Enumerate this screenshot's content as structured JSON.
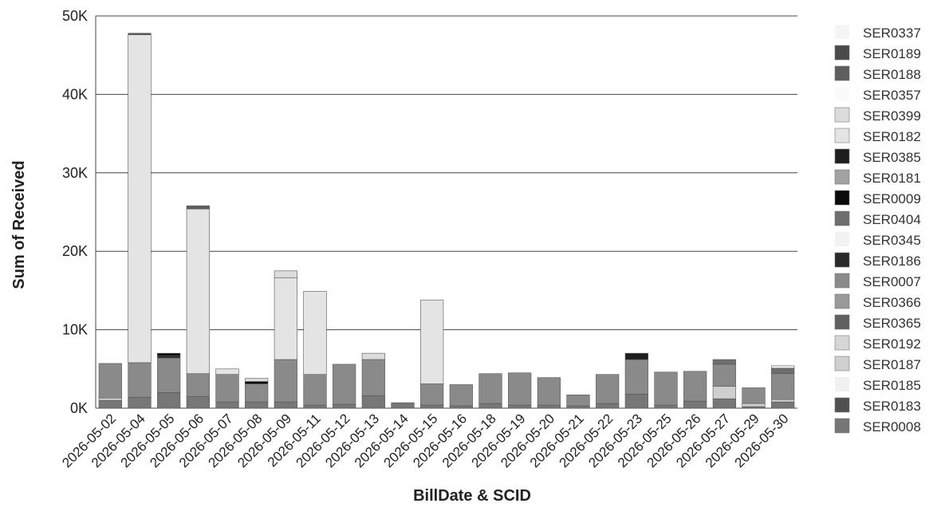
{
  "chart_data": {
    "type": "bar",
    "stacked": true,
    "xlabel": "BillDate & SCID",
    "ylabel": "Sum of Received",
    "ylim": [
      0,
      50000
    ],
    "yticks": [
      {
        "value": 0,
        "label": "0K"
      },
      {
        "value": 10000,
        "label": "10K"
      },
      {
        "value": 20000,
        "label": "20K"
      },
      {
        "value": 30000,
        "label": "30K"
      },
      {
        "value": 40000,
        "label": "40K"
      },
      {
        "value": 50000,
        "label": "50K"
      }
    ],
    "grid": true,
    "legend_position": "right",
    "categories": [
      "2026-05-02",
      "2026-05-04",
      "2026-05-05",
      "2026-05-06",
      "2026-05-07",
      "2026-05-08",
      "2026-05-09",
      "2026-05-11",
      "2026-05-12",
      "2026-05-13",
      "2026-05-14",
      "2026-05-15",
      "2026-05-16",
      "2026-05-18",
      "2026-05-19",
      "2026-05-20",
      "2026-05-21",
      "2026-05-22",
      "2026-05-23",
      "2026-05-25",
      "2026-05-26",
      "2026-05-27",
      "2026-05-29",
      "2026-05-30"
    ],
    "series": [
      {
        "name": "SER0337",
        "color": "#f5f5f5",
        "values": [
          0,
          0,
          0,
          0,
          0,
          0,
          0,
          0,
          0,
          0,
          0,
          0,
          0,
          0,
          0,
          0,
          0,
          0,
          0,
          0,
          0,
          0,
          0,
          300
        ]
      },
      {
        "name": "SER0189",
        "color": "#4a4a4a",
        "values": [
          0,
          0,
          0,
          0,
          0,
          0,
          0,
          0,
          0,
          0,
          0,
          0,
          0,
          0,
          0,
          0,
          0,
          0,
          0,
          0,
          0,
          0,
          0,
          0
        ]
      },
      {
        "name": "SER0188",
        "color": "#5e5e5e",
        "values": [
          0,
          200,
          0,
          400,
          0,
          0,
          0,
          0,
          0,
          0,
          0,
          0,
          0,
          0,
          0,
          0,
          0,
          0,
          0,
          0,
          0,
          0,
          0,
          0
        ]
      },
      {
        "name": "SER0357",
        "color": "#fafafa",
        "values": [
          0,
          0,
          0,
          0,
          0,
          0,
          0,
          0,
          0,
          0,
          0,
          0,
          0,
          0,
          0,
          0,
          0,
          0,
          0,
          0,
          0,
          0,
          0,
          0
        ]
      },
      {
        "name": "SER0399",
        "color": "#dcdcdc",
        "values": [
          0,
          0,
          0,
          0,
          0,
          400,
          900,
          0,
          0,
          800,
          0,
          0,
          0,
          0,
          0,
          0,
          0,
          0,
          0,
          0,
          0,
          0,
          0,
          0
        ]
      },
      {
        "name": "SER0182",
        "color": "#e4e4e4",
        "values": [
          0,
          41800,
          0,
          21000,
          700,
          0,
          10400,
          10600,
          0,
          0,
          0,
          10700,
          0,
          0,
          0,
          0,
          0,
          0,
          0,
          0,
          0,
          0,
          0,
          0
        ]
      },
      {
        "name": "SER0385",
        "color": "#1e1e1e",
        "values": [
          0,
          0,
          0,
          0,
          0,
          0,
          0,
          0,
          0,
          0,
          0,
          0,
          0,
          0,
          0,
          0,
          0,
          0,
          800,
          0,
          0,
          0,
          0,
          0
        ]
      },
      {
        "name": "SER0181",
        "color": "#a2a2a2",
        "values": [
          0,
          0,
          0,
          0,
          0,
          0,
          0,
          0,
          0,
          0,
          0,
          0,
          0,
          0,
          0,
          0,
          0,
          0,
          0,
          0,
          0,
          0,
          0,
          0
        ]
      },
      {
        "name": "SER0009",
        "color": "#0a0a0a",
        "values": [
          0,
          0,
          300,
          0,
          0,
          300,
          0,
          0,
          0,
          0,
          0,
          0,
          0,
          0,
          0,
          0,
          0,
          0,
          0,
          0,
          0,
          0,
          0,
          0
        ]
      },
      {
        "name": "SER0404",
        "color": "#6e6e6e",
        "values": [
          0,
          0,
          0,
          0,
          0,
          0,
          0,
          0,
          0,
          0,
          0,
          0,
          0,
          0,
          0,
          0,
          0,
          0,
          0,
          0,
          0,
          600,
          0,
          700
        ]
      },
      {
        "name": "SER0345",
        "color": "#f2f2f2",
        "values": [
          0,
          0,
          0,
          0,
          0,
          0,
          0,
          0,
          0,
          0,
          0,
          0,
          0,
          0,
          0,
          0,
          0,
          0,
          0,
          0,
          0,
          0,
          0,
          0
        ]
      },
      {
        "name": "SER0186",
        "color": "#2a2a2a",
        "values": [
          0,
          0,
          300,
          0,
          0,
          0,
          0,
          0,
          0,
          0,
          0,
          0,
          0,
          0,
          0,
          0,
          0,
          0,
          0,
          0,
          0,
          0,
          0,
          0
        ]
      },
      {
        "name": "SER0007",
        "color": "#8a8a8a",
        "values": [
          4400,
          4400,
          4400,
          2900,
          3500,
          2300,
          5400,
          3900,
          5100,
          4600,
          0,
          2700,
          2700,
          3800,
          4100,
          3500,
          1400,
          3700,
          4400,
          4200,
          3800,
          2800,
          2000,
          3300
        ]
      },
      {
        "name": "SER0366",
        "color": "#999999",
        "values": [
          0,
          0,
          0,
          0,
          0,
          0,
          0,
          0,
          0,
          0,
          0,
          0,
          0,
          0,
          0,
          0,
          0,
          0,
          0,
          0,
          0,
          0,
          0,
          0
        ]
      },
      {
        "name": "SER0365",
        "color": "#606060",
        "values": [
          0,
          0,
          0,
          0,
          0,
          0,
          0,
          0,
          0,
          0,
          0,
          0,
          0,
          0,
          0,
          0,
          0,
          0,
          0,
          0,
          0,
          0,
          0,
          0
        ]
      },
      {
        "name": "SER0192",
        "color": "#d6d6d6",
        "values": [
          0,
          0,
          0,
          0,
          0,
          0,
          0,
          0,
          0,
          0,
          0,
          0,
          0,
          0,
          0,
          0,
          0,
          0,
          0,
          0,
          0,
          0,
          0,
          0
        ]
      },
      {
        "name": "SER0187",
        "color": "#cfcfcf",
        "values": [
          300,
          0,
          0,
          0,
          0,
          0,
          0,
          0,
          0,
          0,
          0,
          0,
          0,
          0,
          0,
          0,
          0,
          0,
          0,
          0,
          0,
          1600,
          400,
          300
        ]
      },
      {
        "name": "SER0185",
        "color": "#f0f0f0",
        "values": [
          0,
          0,
          0,
          0,
          0,
          0,
          0,
          0,
          0,
          0,
          0,
          0,
          0,
          0,
          0,
          0,
          0,
          0,
          0,
          0,
          0,
          0,
          0,
          0
        ]
      },
      {
        "name": "SER0183",
        "color": "#505050",
        "values": [
          0,
          0,
          0,
          0,
          0,
          0,
          0,
          0,
          0,
          0,
          0,
          0,
          0,
          0,
          0,
          0,
          0,
          0,
          0,
          0,
          0,
          0,
          0,
          0
        ]
      },
      {
        "name": "SER0008",
        "color": "#777777",
        "values": [
          1000,
          1400,
          2000,
          1500,
          800,
          800,
          800,
          400,
          500,
          1600,
          700,
          400,
          300,
          600,
          400,
          400,
          300,
          600,
          1800,
          400,
          900,
          1200,
          200,
          800
        ]
      }
    ]
  }
}
